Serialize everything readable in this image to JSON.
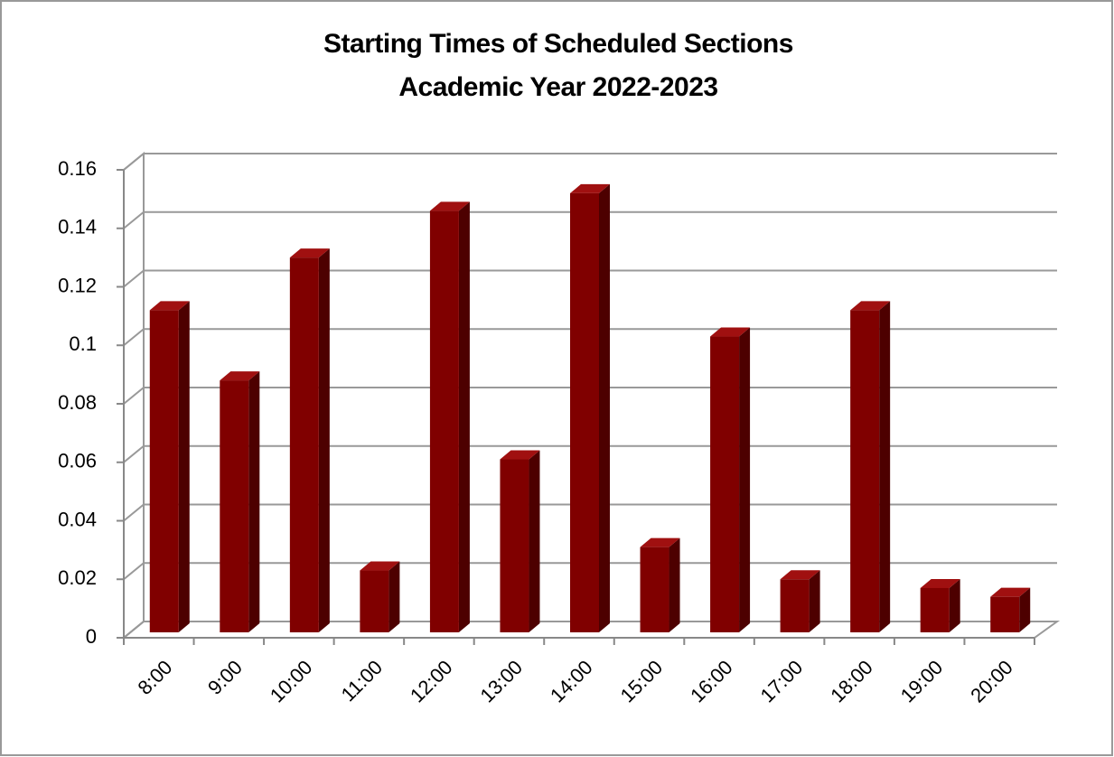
{
  "chart_data": {
    "type": "bar3d",
    "title": "Starting Times of Scheduled Sections",
    "subtitle": "Academic Year 2022-2023",
    "categories": [
      "8:00",
      "9:00",
      "10:00",
      "11:00",
      "12:00",
      "13:00",
      "14:00",
      "15:00",
      "16:00",
      "17:00",
      "18:00",
      "19:00",
      "20:00"
    ],
    "values": [
      0.112,
      0.088,
      0.13,
      0.023,
      0.146,
      0.061,
      0.152,
      0.031,
      0.103,
      0.02,
      0.112,
      0.017,
      0.014
    ],
    "color": "#800000",
    "ylim": [
      0,
      0.16
    ],
    "yticks": [
      0,
      0.02,
      0.04,
      0.06,
      0.08,
      0.1,
      0.12,
      0.14,
      0.16
    ],
    "grid": true
  }
}
